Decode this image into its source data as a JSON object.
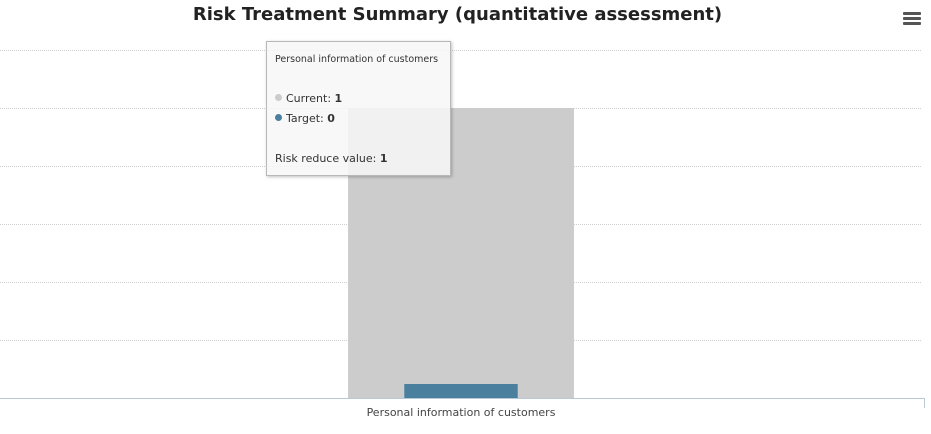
{
  "chart_data": {
    "type": "bar",
    "title": "Risk Treatment Summary (quantitative assessment)",
    "categories": [
      "Personal information of customers"
    ],
    "series": [
      {
        "name": "Current",
        "values": [
          1
        ],
        "color": "#cccccc"
      },
      {
        "name": "Target",
        "values": [
          0
        ],
        "color": "#4a7f9e"
      }
    ],
    "ylim": [
      0,
      1.2
    ],
    "grid": true,
    "legend": "none"
  },
  "tooltip": {
    "header": "Personal information of customers",
    "current_label": "Current:",
    "current_value": "1",
    "target_label": "Target:",
    "target_value": "0",
    "reduce_label": "Risk reduce value:",
    "reduce_value": "1"
  },
  "icons": {
    "menu": "hamburger-menu-icon"
  }
}
